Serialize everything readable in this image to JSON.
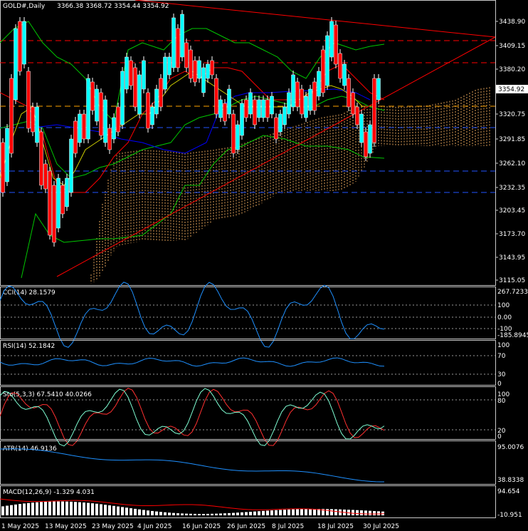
{
  "header": {
    "symbol": "GOLD#,Daily",
    "ohlc": "3366.38 3368.72 3354.44 3354.92"
  },
  "price_axis": {
    "ticks": [
      "3438.90",
      "3409.15",
      "3380.20",
      "3350.45",
      "3320.75",
      "3291.85",
      "3262.10",
      "3232.35",
      "3203.45",
      "3173.70",
      "3143.95",
      "3115.05"
    ],
    "current_price": "3354.92"
  },
  "time_axis": {
    "labels": [
      "1 May 2025",
      "13 May 2025",
      "23 May 2025",
      "4 Jun 2025",
      "16 Jun 2025",
      "26 Jun 2025",
      "8 Jul 2025",
      "18 Jul 2025",
      "30 Jul 2025"
    ]
  },
  "indicators": {
    "cci": {
      "label": "CCI(14) 28.1579",
      "ticks": [
        "267.7233",
        "100",
        "0.00",
        "-100",
        "-185.8945"
      ]
    },
    "rsi": {
      "label": "RSI(14) 52.1842",
      "ticks": [
        "100",
        "70",
        "30",
        "0"
      ]
    },
    "stoch": {
      "label": "Sto(5,3,3) 67.5410 40.0266",
      "ticks": [
        "100",
        "80",
        "20",
        "0"
      ]
    },
    "atr": {
      "label": "ATR(14) 46.9136",
      "ticks": [
        "95.0076",
        "38.8338"
      ]
    },
    "macd": {
      "label": "MACD(12,26,9) -1.329 4.031",
      "ticks": [
        "94.654",
        "-10.951"
      ]
    }
  },
  "colors": {
    "bull_candle": "#00ffff",
    "bear_candle": "#ff0000",
    "sma_green": "#00c800",
    "line_red": "#ff0000",
    "line_blue": "#0000ff",
    "osc_line": "#1e90ff"
  }
}
